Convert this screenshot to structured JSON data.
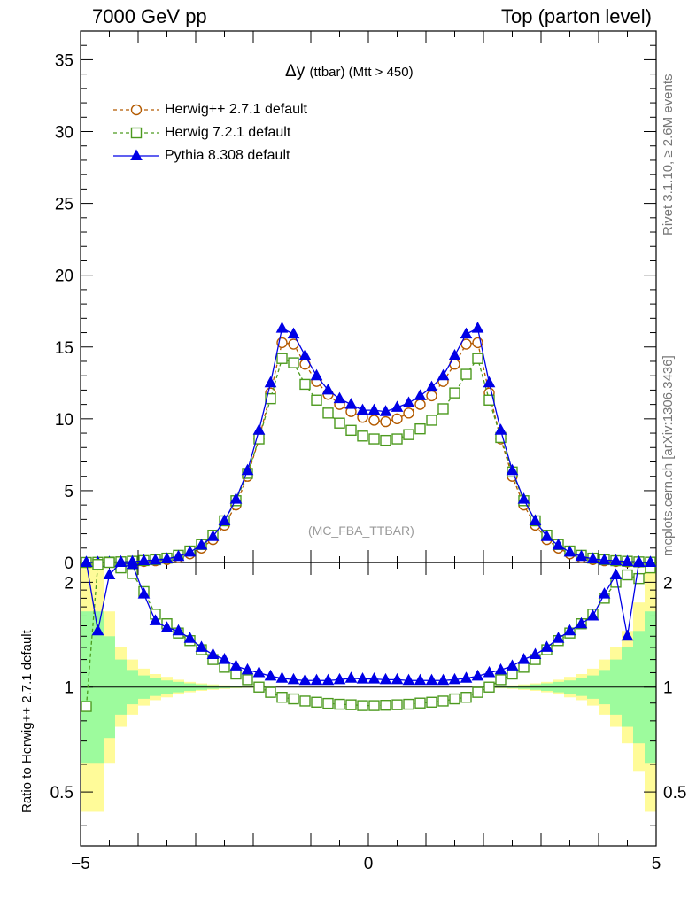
{
  "header": {
    "left": "7000 GeV pp",
    "right": "Top (parton level)"
  },
  "side_labels": {
    "rivet": "Rivet 3.1.10, ≥ 2.6M events",
    "mcplots": "mcplots.cern.ch [arXiv:1306.3436]"
  },
  "chart_data": {
    "type": "line",
    "title": "Δy",
    "title_sub": "(ttbar) (Mtt > 450)",
    "watermark": "(MC_FBA_TTBAR)",
    "xlabel": "",
    "ylabel": "",
    "ratio_ylabel": "Ratio to Herwig++ 2.7.1 default",
    "xlim": [
      -5,
      5
    ],
    "ylim": [
      0,
      37
    ],
    "ratio_ylim": [
      0.35,
      2.28
    ],
    "ratio_log": true,
    "x_ticks": [
      "−5",
      "0",
      "5"
    ],
    "y_ticks": [
      "0",
      "5",
      "10",
      "15",
      "20",
      "25",
      "30",
      "35"
    ],
    "ratio_ticks": [
      "0.5",
      "1",
      "2"
    ],
    "x": [
      -4.9,
      -4.7,
      -4.5,
      -4.3,
      -4.1,
      -3.9,
      -3.7,
      -3.5,
      -3.3,
      -3.1,
      -2.9,
      -2.7,
      -2.5,
      -2.3,
      -2.1,
      -1.9,
      -1.7,
      -1.5,
      -1.3,
      -1.1,
      -0.9,
      -0.7,
      -0.5,
      -0.3,
      -0.1,
      0.1,
      0.3,
      0.5,
      0.7,
      0.9,
      1.1,
      1.3,
      1.5,
      1.7,
      1.9,
      2.1,
      2.3,
      2.5,
      2.7,
      2.9,
      3.1,
      3.3,
      3.5,
      3.7,
      3.9,
      4.1,
      4.3,
      4.5,
      4.7,
      4.9
    ],
    "series": [
      {
        "name": "Herwig++ 2.7.1 default",
        "color": "#b35a00",
        "marker": "circle",
        "dashed": true,
        "values": [
          0.002,
          0.005,
          0.01,
          0.02,
          0.04,
          0.07,
          0.12,
          0.2,
          0.35,
          0.6,
          1.0,
          1.6,
          2.6,
          4.0,
          6.0,
          8.6,
          11.8,
          15.3,
          15.2,
          13.8,
          12.6,
          11.7,
          11.0,
          10.5,
          10.1,
          9.9,
          9.8,
          10.0,
          10.4,
          11.0,
          11.6,
          12.6,
          13.8,
          15.2,
          15.3,
          11.8,
          8.6,
          6.0,
          4.0,
          2.6,
          1.6,
          1.0,
          0.6,
          0.35,
          0.2,
          0.12,
          0.07,
          0.04,
          0.02,
          0.01
        ]
      },
      {
        "name": "Herwig 7.2.1 default",
        "color": "#4c9a1e",
        "marker": "square",
        "dashed": true,
        "values": [
          0.002,
          0.011,
          0.025,
          0.044,
          0.085,
          0.13,
          0.19,
          0.3,
          0.5,
          0.8,
          1.25,
          1.9,
          2.9,
          4.3,
          6.2,
          8.6,
          11.4,
          14.2,
          13.9,
          12.4,
          11.3,
          10.4,
          9.7,
          9.2,
          8.8,
          8.6,
          8.5,
          8.6,
          8.9,
          9.3,
          9.9,
          10.7,
          11.8,
          13.1,
          14.2,
          11.3,
          8.7,
          6.3,
          4.3,
          2.9,
          1.9,
          1.25,
          0.8,
          0.5,
          0.3,
          0.19,
          0.12,
          0.08,
          0.04,
          0.02
        ]
      },
      {
        "name": "Pythia 8.308 default",
        "color": "#0000e6",
        "marker": "triangle",
        "dashed": false,
        "values": [
          0.005,
          0.005,
          0.01,
          0.04,
          0.05,
          0.12,
          0.16,
          0.25,
          0.42,
          0.72,
          1.2,
          1.8,
          2.9,
          4.4,
          6.4,
          9.2,
          12.5,
          16.3,
          15.9,
          14.4,
          13.0,
          12.0,
          11.4,
          11.0,
          10.6,
          10.6,
          10.5,
          10.8,
          11.1,
          11.6,
          12.2,
          13.0,
          14.4,
          15.9,
          16.3,
          12.5,
          9.2,
          6.4,
          4.4,
          2.9,
          1.8,
          1.2,
          0.72,
          0.42,
          0.25,
          0.16,
          0.12,
          0.06,
          0.03,
          0.005
        ]
      }
    ],
    "ratios": [
      {
        "series": "Herwig 7.2.1 default",
        "values": [
          0.88,
          2.25,
          2.45,
          2.2,
          2.12,
          1.88,
          1.62,
          1.52,
          1.43,
          1.36,
          1.28,
          1.2,
          1.14,
          1.09,
          1.05,
          1.0,
          0.966,
          0.935,
          0.925,
          0.912,
          0.905,
          0.898,
          0.893,
          0.89,
          0.885,
          0.885,
          0.887,
          0.89,
          0.893,
          0.9,
          0.905,
          0.912,
          0.925,
          0.935,
          0.966,
          1.0,
          1.05,
          1.09,
          1.14,
          1.2,
          1.28,
          1.36,
          1.43,
          1.52,
          1.62,
          1.8,
          2.0,
          2.1,
          2.05,
          2.2
        ]
      },
      {
        "series": "Pythia 8.308 default",
        "values": [
          2.3,
          1.45,
          2.1,
          2.45,
          2.25,
          1.85,
          1.55,
          1.48,
          1.45,
          1.38,
          1.3,
          1.24,
          1.2,
          1.15,
          1.12,
          1.1,
          1.075,
          1.06,
          1.05,
          1.045,
          1.045,
          1.045,
          1.05,
          1.06,
          1.055,
          1.055,
          1.05,
          1.05,
          1.045,
          1.045,
          1.045,
          1.045,
          1.05,
          1.06,
          1.075,
          1.1,
          1.12,
          1.15,
          1.2,
          1.24,
          1.3,
          1.38,
          1.45,
          1.52,
          1.6,
          1.85,
          2.1,
          1.4,
          2.4,
          2.3
        ]
      }
    ],
    "ratio_bands": {
      "inner_color": "#9dfb9d",
      "outer_color": "#fffb99",
      "inner_upper": [
        1.65,
        1.65,
        1.4,
        1.2,
        1.12,
        1.08,
        1.06,
        1.045,
        1.035,
        1.025,
        1.018,
        1.012,
        1.008,
        1.005,
        1.003,
        1.002,
        1.002,
        1.001,
        1.001,
        1.001,
        1.001,
        1.001,
        1.001,
        1.001,
        1.001,
        1.001,
        1.001,
        1.001,
        1.001,
        1.001,
        1.001,
        1.001,
        1.001,
        1.002,
        1.002,
        1.003,
        1.005,
        1.008,
        1.012,
        1.018,
        1.025,
        1.035,
        1.045,
        1.06,
        1.08,
        1.12,
        1.2,
        1.3,
        1.45,
        1.65
      ],
      "outer_upper": [
        2.28,
        2.28,
        1.65,
        1.3,
        1.2,
        1.13,
        1.09,
        1.07,
        1.05,
        1.035,
        1.025,
        1.018,
        1.012,
        1.008,
        1.005,
        1.003,
        1.002,
        1.002,
        1.002,
        1.001,
        1.001,
        1.001,
        1.001,
        1.001,
        1.001,
        1.001,
        1.001,
        1.001,
        1.001,
        1.001,
        1.001,
        1.002,
        1.002,
        1.002,
        1.003,
        1.005,
        1.008,
        1.012,
        1.018,
        1.025,
        1.035,
        1.05,
        1.07,
        1.09,
        1.13,
        1.2,
        1.3,
        1.45,
        1.75,
        2.28
      ]
    },
    "grid": false,
    "legend_position": "top-left"
  }
}
